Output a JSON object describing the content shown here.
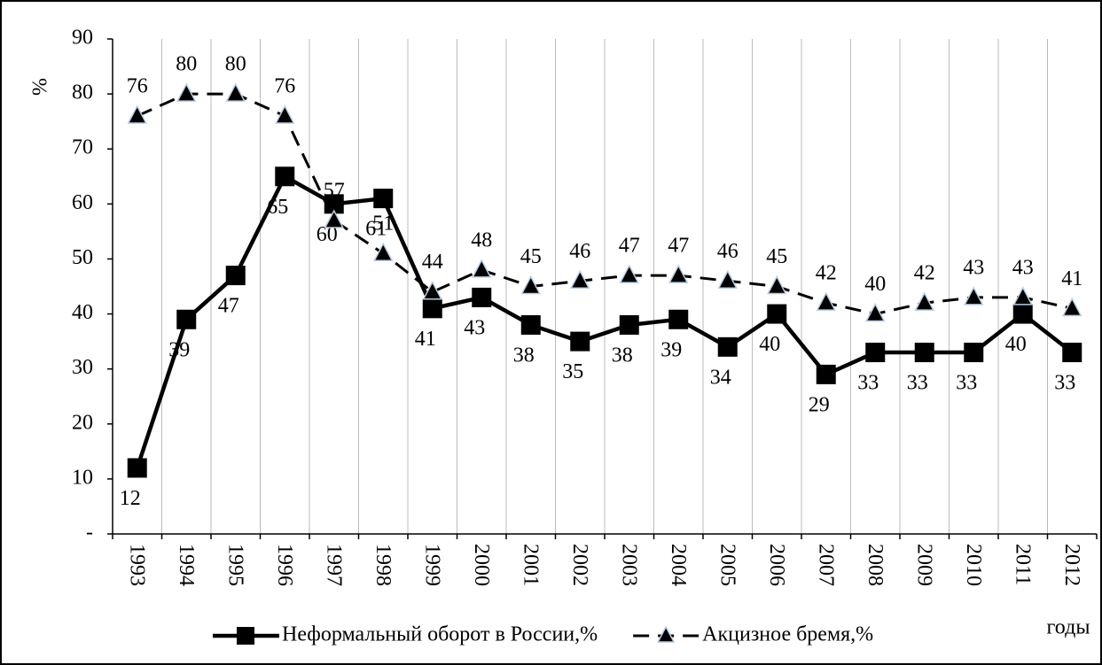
{
  "chart_data": {
    "type": "line",
    "y_label": "%",
    "x_label": "годы",
    "categories": [
      "1993",
      "1994",
      "1995",
      "1996",
      "1997",
      "1998",
      "1999",
      "2000",
      "2001",
      "2002",
      "2003",
      "2004",
      "2005",
      "2006",
      "2007",
      "2008",
      "2009",
      "2010",
      "2011",
      "2012"
    ],
    "series": [
      {
        "name": "Неформальный оборот в России,%",
        "color": "#000000",
        "marker": "square",
        "values": [
          12,
          39,
          47,
          65,
          60,
          61,
          41,
          43,
          38,
          35,
          38,
          39,
          34,
          40,
          29,
          33,
          33,
          33,
          40,
          33
        ]
      },
      {
        "name": "Акцизное бремя,%",
        "color": "#000000",
        "marker": "triangle",
        "dashed": true,
        "values": [
          76,
          80,
          80,
          76,
          57,
          51,
          44,
          48,
          45,
          46,
          47,
          47,
          46,
          45,
          42,
          40,
          42,
          43,
          43,
          41
        ]
      }
    ],
    "ylim": [
      0,
      90
    ],
    "yticks": [
      {
        "value": 0,
        "label": "-"
      },
      10,
      20,
      30,
      40,
      50,
      60,
      70,
      80,
      90
    ],
    "grid": true
  }
}
